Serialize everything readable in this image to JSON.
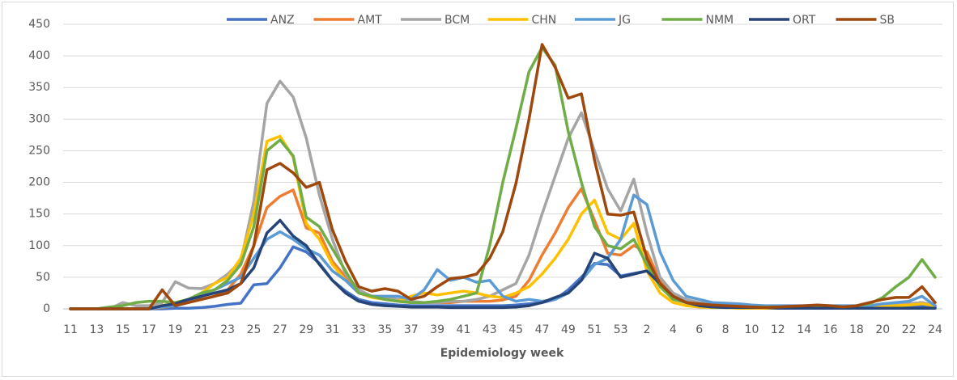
{
  "chart_data": {
    "type": "line",
    "x_label": "Epidemiology week",
    "categories": [
      "11",
      null,
      "13",
      null,
      "15",
      null,
      "17",
      null,
      "19",
      null,
      "21",
      null,
      "23",
      null,
      "25",
      null,
      "27",
      null,
      "29",
      null,
      "31",
      null,
      "33",
      null,
      "35",
      null,
      "37",
      null,
      "39",
      null,
      "41",
      null,
      "43",
      null,
      "45",
      null,
      "47",
      null,
      "49",
      null,
      "51",
      null,
      "53",
      null,
      "2",
      null,
      "4",
      null,
      "6",
      null,
      "8",
      null,
      "10",
      null,
      "12",
      null,
      "14",
      null,
      "16",
      null,
      "18",
      null,
      "20",
      null,
      "22",
      null,
      "24"
    ],
    "ylim": [
      0,
      450
    ],
    "yticks": [
      0,
      50,
      100,
      150,
      200,
      250,
      300,
      350,
      400,
      450
    ],
    "grid": true,
    "legend": "top",
    "series": [
      {
        "name": "ANZ",
        "color": "#4472c4",
        "values": [
          0,
          0,
          0,
          0,
          0,
          0,
          0,
          0,
          1,
          1,
          2,
          4,
          7,
          9,
          38,
          40,
          65,
          98,
          90,
          72,
          45,
          28,
          15,
          10,
          8,
          6,
          5,
          5,
          5,
          5,
          5,
          5,
          5,
          5,
          6,
          8,
          10,
          15,
          30,
          50,
          72,
          70,
          52,
          56,
          60,
          40,
          20,
          12,
          6,
          4,
          3,
          2,
          2,
          2,
          1,
          1,
          1,
          1,
          1,
          1,
          1,
          2,
          2,
          3,
          4,
          5,
          3
        ]
      },
      {
        "name": "AMT",
        "color": "#ed7d31",
        "values": [
          0,
          0,
          0,
          0,
          0,
          0,
          0,
          2,
          5,
          10,
          15,
          20,
          30,
          55,
          100,
          160,
          178,
          188,
          128,
          120,
          75,
          50,
          28,
          20,
          15,
          12,
          10,
          10,
          10,
          10,
          12,
          12,
          12,
          14,
          20,
          45,
          85,
          120,
          160,
          190,
          140,
          88,
          85,
          100,
          90,
          45,
          20,
          10,
          5,
          3,
          3,
          2,
          2,
          2,
          2,
          2,
          2,
          2,
          2,
          2,
          3,
          3,
          5,
          7,
          8,
          10,
          5
        ]
      },
      {
        "name": "BCM",
        "color": "#a5a5a5",
        "values": [
          0,
          0,
          0,
          0,
          10,
          5,
          5,
          10,
          43,
          33,
          32,
          40,
          55,
          75,
          170,
          325,
          360,
          335,
          270,
          180,
          110,
          55,
          30,
          20,
          18,
          15,
          12,
          10,
          10,
          12,
          12,
          15,
          20,
          30,
          40,
          85,
          150,
          210,
          270,
          310,
          250,
          190,
          155,
          205,
          120,
          50,
          25,
          15,
          10,
          8,
          6,
          5,
          5,
          4,
          4,
          4,
          4,
          3,
          3,
          3,
          4,
          5,
          6,
          8,
          8,
          10,
          5
        ]
      },
      {
        "name": "CHN",
        "color": "#ffc000",
        "values": [
          0,
          0,
          0,
          0,
          0,
          0,
          0,
          5,
          10,
          15,
          25,
          40,
          50,
          80,
          150,
          265,
          273,
          240,
          135,
          110,
          70,
          45,
          25,
          18,
          15,
          12,
          20,
          25,
          22,
          25,
          28,
          25,
          20,
          18,
          25,
          35,
          55,
          80,
          110,
          150,
          172,
          120,
          110,
          135,
          60,
          25,
          10,
          5,
          3,
          2,
          2,
          1,
          1,
          1,
          1,
          1,
          1,
          1,
          1,
          2,
          2,
          3,
          4,
          5,
          6,
          8,
          5
        ]
      },
      {
        "name": "JG",
        "color": "#5b9bd5",
        "values": [
          0,
          0,
          0,
          0,
          0,
          0,
          0,
          3,
          5,
          10,
          20,
          30,
          40,
          50,
          80,
          110,
          122,
          110,
          95,
          85,
          60,
          45,
          25,
          20,
          20,
          20,
          15,
          30,
          62,
          45,
          50,
          42,
          45,
          20,
          12,
          15,
          12,
          15,
          25,
          45,
          70,
          80,
          110,
          180,
          165,
          90,
          45,
          20,
          15,
          10,
          9,
          8,
          6,
          5,
          5,
          5,
          5,
          5,
          5,
          5,
          5,
          5,
          8,
          10,
          12,
          20,
          5
        ]
      },
      {
        "name": "NMM",
        "color": "#70ad47",
        "values": [
          0,
          0,
          0,
          3,
          5,
          10,
          12,
          12,
          10,
          15,
          25,
          30,
          45,
          70,
          130,
          250,
          267,
          242,
          145,
          130,
          95,
          60,
          25,
          20,
          15,
          12,
          10,
          10,
          12,
          15,
          20,
          25,
          100,
          200,
          285,
          375,
          413,
          385,
          280,
          200,
          130,
          100,
          95,
          110,
          70,
          35,
          15,
          10,
          6,
          5,
          4,
          3,
          3,
          3,
          3,
          3,
          3,
          3,
          3,
          3,
          5,
          8,
          18,
          35,
          50,
          78,
          50
        ]
      },
      {
        "name": "ORT",
        "color": "#264478",
        "values": [
          0,
          0,
          0,
          0,
          0,
          0,
          0,
          5,
          8,
          15,
          20,
          25,
          30,
          40,
          65,
          120,
          140,
          115,
          100,
          70,
          45,
          25,
          12,
          7,
          5,
          4,
          3,
          3,
          3,
          2,
          2,
          2,
          2,
          2,
          3,
          5,
          10,
          18,
          25,
          45,
          88,
          80,
          50,
          55,
          60,
          40,
          20,
          10,
          5,
          3,
          2,
          2,
          2,
          2,
          1,
          1,
          1,
          1,
          1,
          1,
          1,
          1,
          1,
          1,
          1,
          1,
          1
        ]
      },
      {
        "name": "SB",
        "color": "#9e480e",
        "values": [
          0,
          0,
          0,
          0,
          0,
          0,
          0,
          30,
          5,
          10,
          15,
          20,
          25,
          40,
          100,
          220,
          230,
          215,
          192,
          200,
          125,
          75,
          35,
          28,
          32,
          28,
          15,
          20,
          35,
          48,
          50,
          55,
          80,
          122,
          198,
          300,
          418,
          382,
          333,
          340,
          235,
          150,
          148,
          153,
          80,
          40,
          20,
          10,
          8,
          6,
          5,
          4,
          3,
          2,
          3,
          4,
          5,
          6,
          5,
          3,
          5,
          10,
          15,
          18,
          18,
          35,
          10
        ]
      }
    ]
  }
}
